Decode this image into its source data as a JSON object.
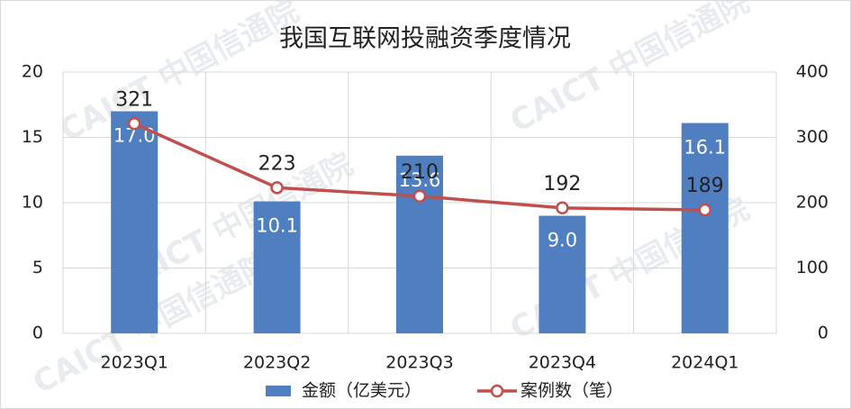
{
  "chart_data": {
    "type": "bar",
    "title": "我国互联网投融资季度情况",
    "watermark": "CAICT 中国信通院",
    "categories": [
      "2023Q1",
      "2023Q2",
      "2023Q3",
      "2023Q4",
      "2024Q1"
    ],
    "series": [
      {
        "name": "金额（亿美元）",
        "type": "bar",
        "color": "#4f7fc0",
        "values": [
          17.0,
          10.1,
          13.6,
          9.0,
          16.1
        ],
        "value_labels": [
          "17.0",
          "10.1",
          "13.6",
          "9.0",
          "16.1"
        ]
      },
      {
        "name": "案例数（笔）",
        "type": "line",
        "axis": "y2",
        "color": "#c0504d",
        "values": [
          321,
          223,
          210,
          192,
          189
        ]
      }
    ],
    "ylim": [
      0,
      20
    ],
    "yticks": [
      0,
      5,
      10,
      15,
      20
    ],
    "y2lim": [
      0,
      400
    ],
    "y2ticks": [
      0,
      100,
      200,
      300,
      400
    ],
    "grid": true,
    "legend": "bottom"
  }
}
